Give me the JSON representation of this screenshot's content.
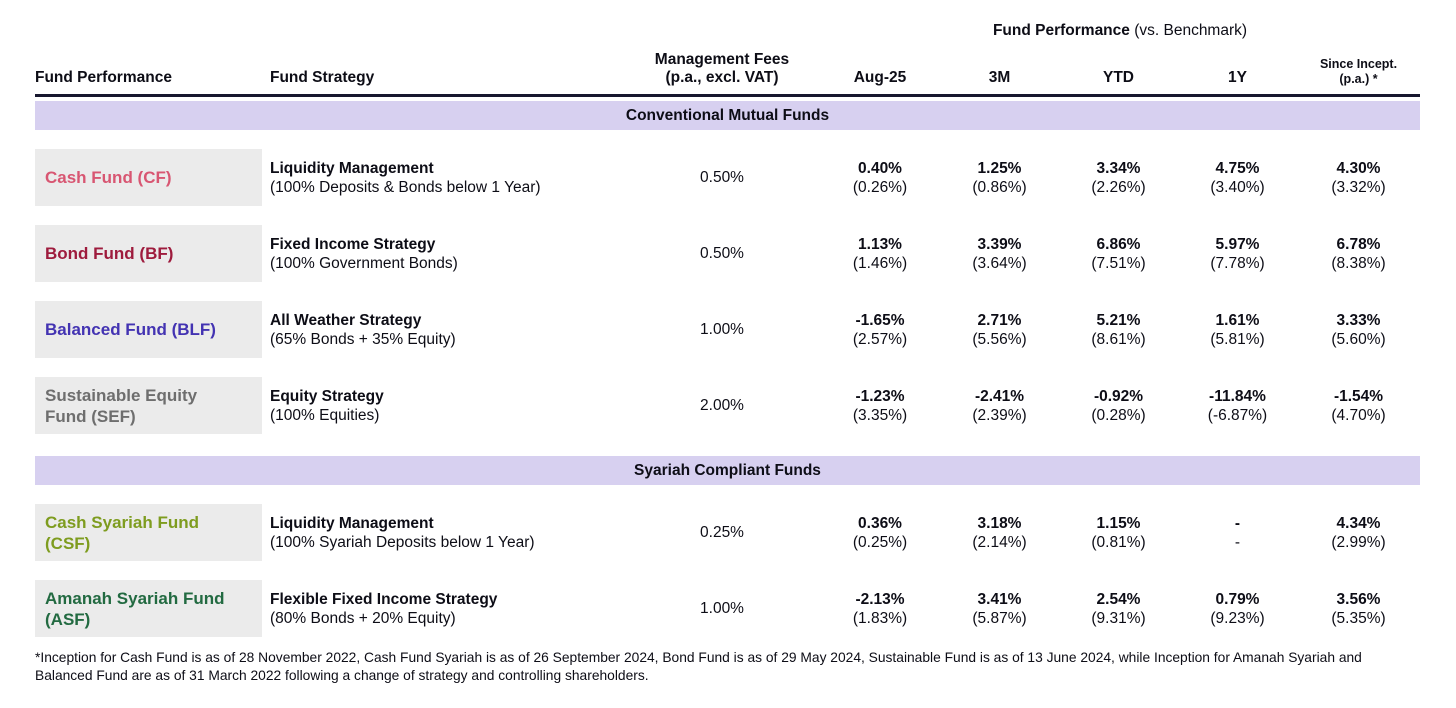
{
  "header": {
    "group_title_bold": "Fund Performance",
    "group_title_rest": " (vs. Benchmark)",
    "col_fund_performance": "Fund Performance",
    "col_fund_strategy": "Fund Strategy",
    "col_fees_line1": "Management Fees",
    "col_fees_line2": "(p.a., excl. VAT)",
    "col_aug25": "Aug-25",
    "col_3m": "3M",
    "col_ytd": "YTD",
    "col_1y": "1Y",
    "col_since_incept_line1": "Since Incept.",
    "col_since_incept_line2": "(p.a.) *"
  },
  "sections": {
    "conventional": "Conventional Mutual Funds",
    "syariah": "Syariah Compliant Funds"
  },
  "colors": {
    "banner_bg": "#d7d0f0",
    "name_cell_bg": "#ebebeb",
    "header_border": "#17172e",
    "cash_fund": "#d85672",
    "bond_fund": "#9e1b3d",
    "balanced_fund": "#4333b2",
    "sustainable_equity_fund": "#6e6e6e",
    "cash_syariah_fund": "#7e9c1f",
    "amanah_syariah_fund": "#226a41"
  },
  "funds": [
    {
      "name": "Cash Fund (CF)",
      "color": "#d85672",
      "strategy": "Liquidity Management",
      "strategy_detail": "(100% Deposits & Bonds below 1 Year)",
      "fee": "0.50%",
      "perf": [
        {
          "fund": "0.40%",
          "benchmark": "(0.26%)"
        },
        {
          "fund": "1.25%",
          "benchmark": "(0.86%)"
        },
        {
          "fund": "3.34%",
          "benchmark": "(2.26%)"
        },
        {
          "fund": "4.75%",
          "benchmark": "(3.40%)"
        },
        {
          "fund": "4.30%",
          "benchmark": "(3.32%)"
        }
      ]
    },
    {
      "name": "Bond Fund (BF)",
      "color": "#9e1b3d",
      "strategy": "Fixed Income Strategy",
      "strategy_detail": "(100% Government Bonds)",
      "fee": "0.50%",
      "perf": [
        {
          "fund": "1.13%",
          "benchmark": "(1.46%)"
        },
        {
          "fund": "3.39%",
          "benchmark": "(3.64%)"
        },
        {
          "fund": "6.86%",
          "benchmark": "(7.51%)"
        },
        {
          "fund": "5.97%",
          "benchmark": "(7.78%)"
        },
        {
          "fund": "6.78%",
          "benchmark": "(8.38%)"
        }
      ]
    },
    {
      "name": "Balanced Fund (BLF)",
      "color": "#4333b2",
      "strategy": "All Weather Strategy",
      "strategy_detail": "(65% Bonds + 35% Equity)",
      "fee": "1.00%",
      "perf": [
        {
          "fund": "-1.65%",
          "benchmark": "(2.57%)"
        },
        {
          "fund": "2.71%",
          "benchmark": "(5.56%)"
        },
        {
          "fund": "5.21%",
          "benchmark": "(8.61%)"
        },
        {
          "fund": "1.61%",
          "benchmark": "(5.81%)"
        },
        {
          "fund": "3.33%",
          "benchmark": "(5.60%)"
        }
      ]
    },
    {
      "name": "Sustainable Equity Fund  (SEF)",
      "color": "#6e6e6e",
      "strategy": "Equity Strategy",
      "strategy_detail": "(100% Equities)",
      "fee": "2.00%",
      "perf": [
        {
          "fund": "-1.23%",
          "benchmark": "(3.35%)"
        },
        {
          "fund": "-2.41%",
          "benchmark": "(2.39%)"
        },
        {
          "fund": "-0.92%",
          "benchmark": "(0.28%)"
        },
        {
          "fund": "-11.84%",
          "benchmark": "(-6.87%)"
        },
        {
          "fund": "-1.54%",
          "benchmark": "(4.70%)"
        }
      ]
    },
    {
      "name": "Cash Syariah Fund (CSF)",
      "color": "#7e9c1f",
      "strategy": "Liquidity Management",
      "strategy_detail": "(100% Syariah Deposits below 1 Year)",
      "fee": "0.25%",
      "perf": [
        {
          "fund": "0.36%",
          "benchmark": "(0.25%)"
        },
        {
          "fund": "3.18%",
          "benchmark": "(2.14%)"
        },
        {
          "fund": "1.15%",
          "benchmark": "(0.81%)"
        },
        {
          "fund": "-",
          "benchmark": "-"
        },
        {
          "fund": "4.34%",
          "benchmark": "(2.99%)"
        }
      ]
    },
    {
      "name": "Amanah Syariah Fund (ASF)",
      "color": "#226a41",
      "strategy": "Flexible Fixed Income Strategy",
      "strategy_detail": "(80% Bonds + 20% Equity)",
      "fee": "1.00%",
      "perf": [
        {
          "fund": "-2.13%",
          "benchmark": "(1.83%)"
        },
        {
          "fund": "3.41%",
          "benchmark": "(5.87%)"
        },
        {
          "fund": "2.54%",
          "benchmark": "(9.31%)"
        },
        {
          "fund": "0.79%",
          "benchmark": "(9.23%)"
        },
        {
          "fund": "3.56%",
          "benchmark": "(5.35%)"
        }
      ]
    }
  ],
  "footnote": "*Inception for Cash Fund is as of 28 November 2022, Cash Fund Syariah is as of 26 September 2024, Bond Fund is as of 29 May 2024, Sustainable Fund is as of 13 June 2024, while Inception for Amanah Syariah and Balanced Fund are as of 31 March 2022 following a change of strategy and controlling shareholders."
}
